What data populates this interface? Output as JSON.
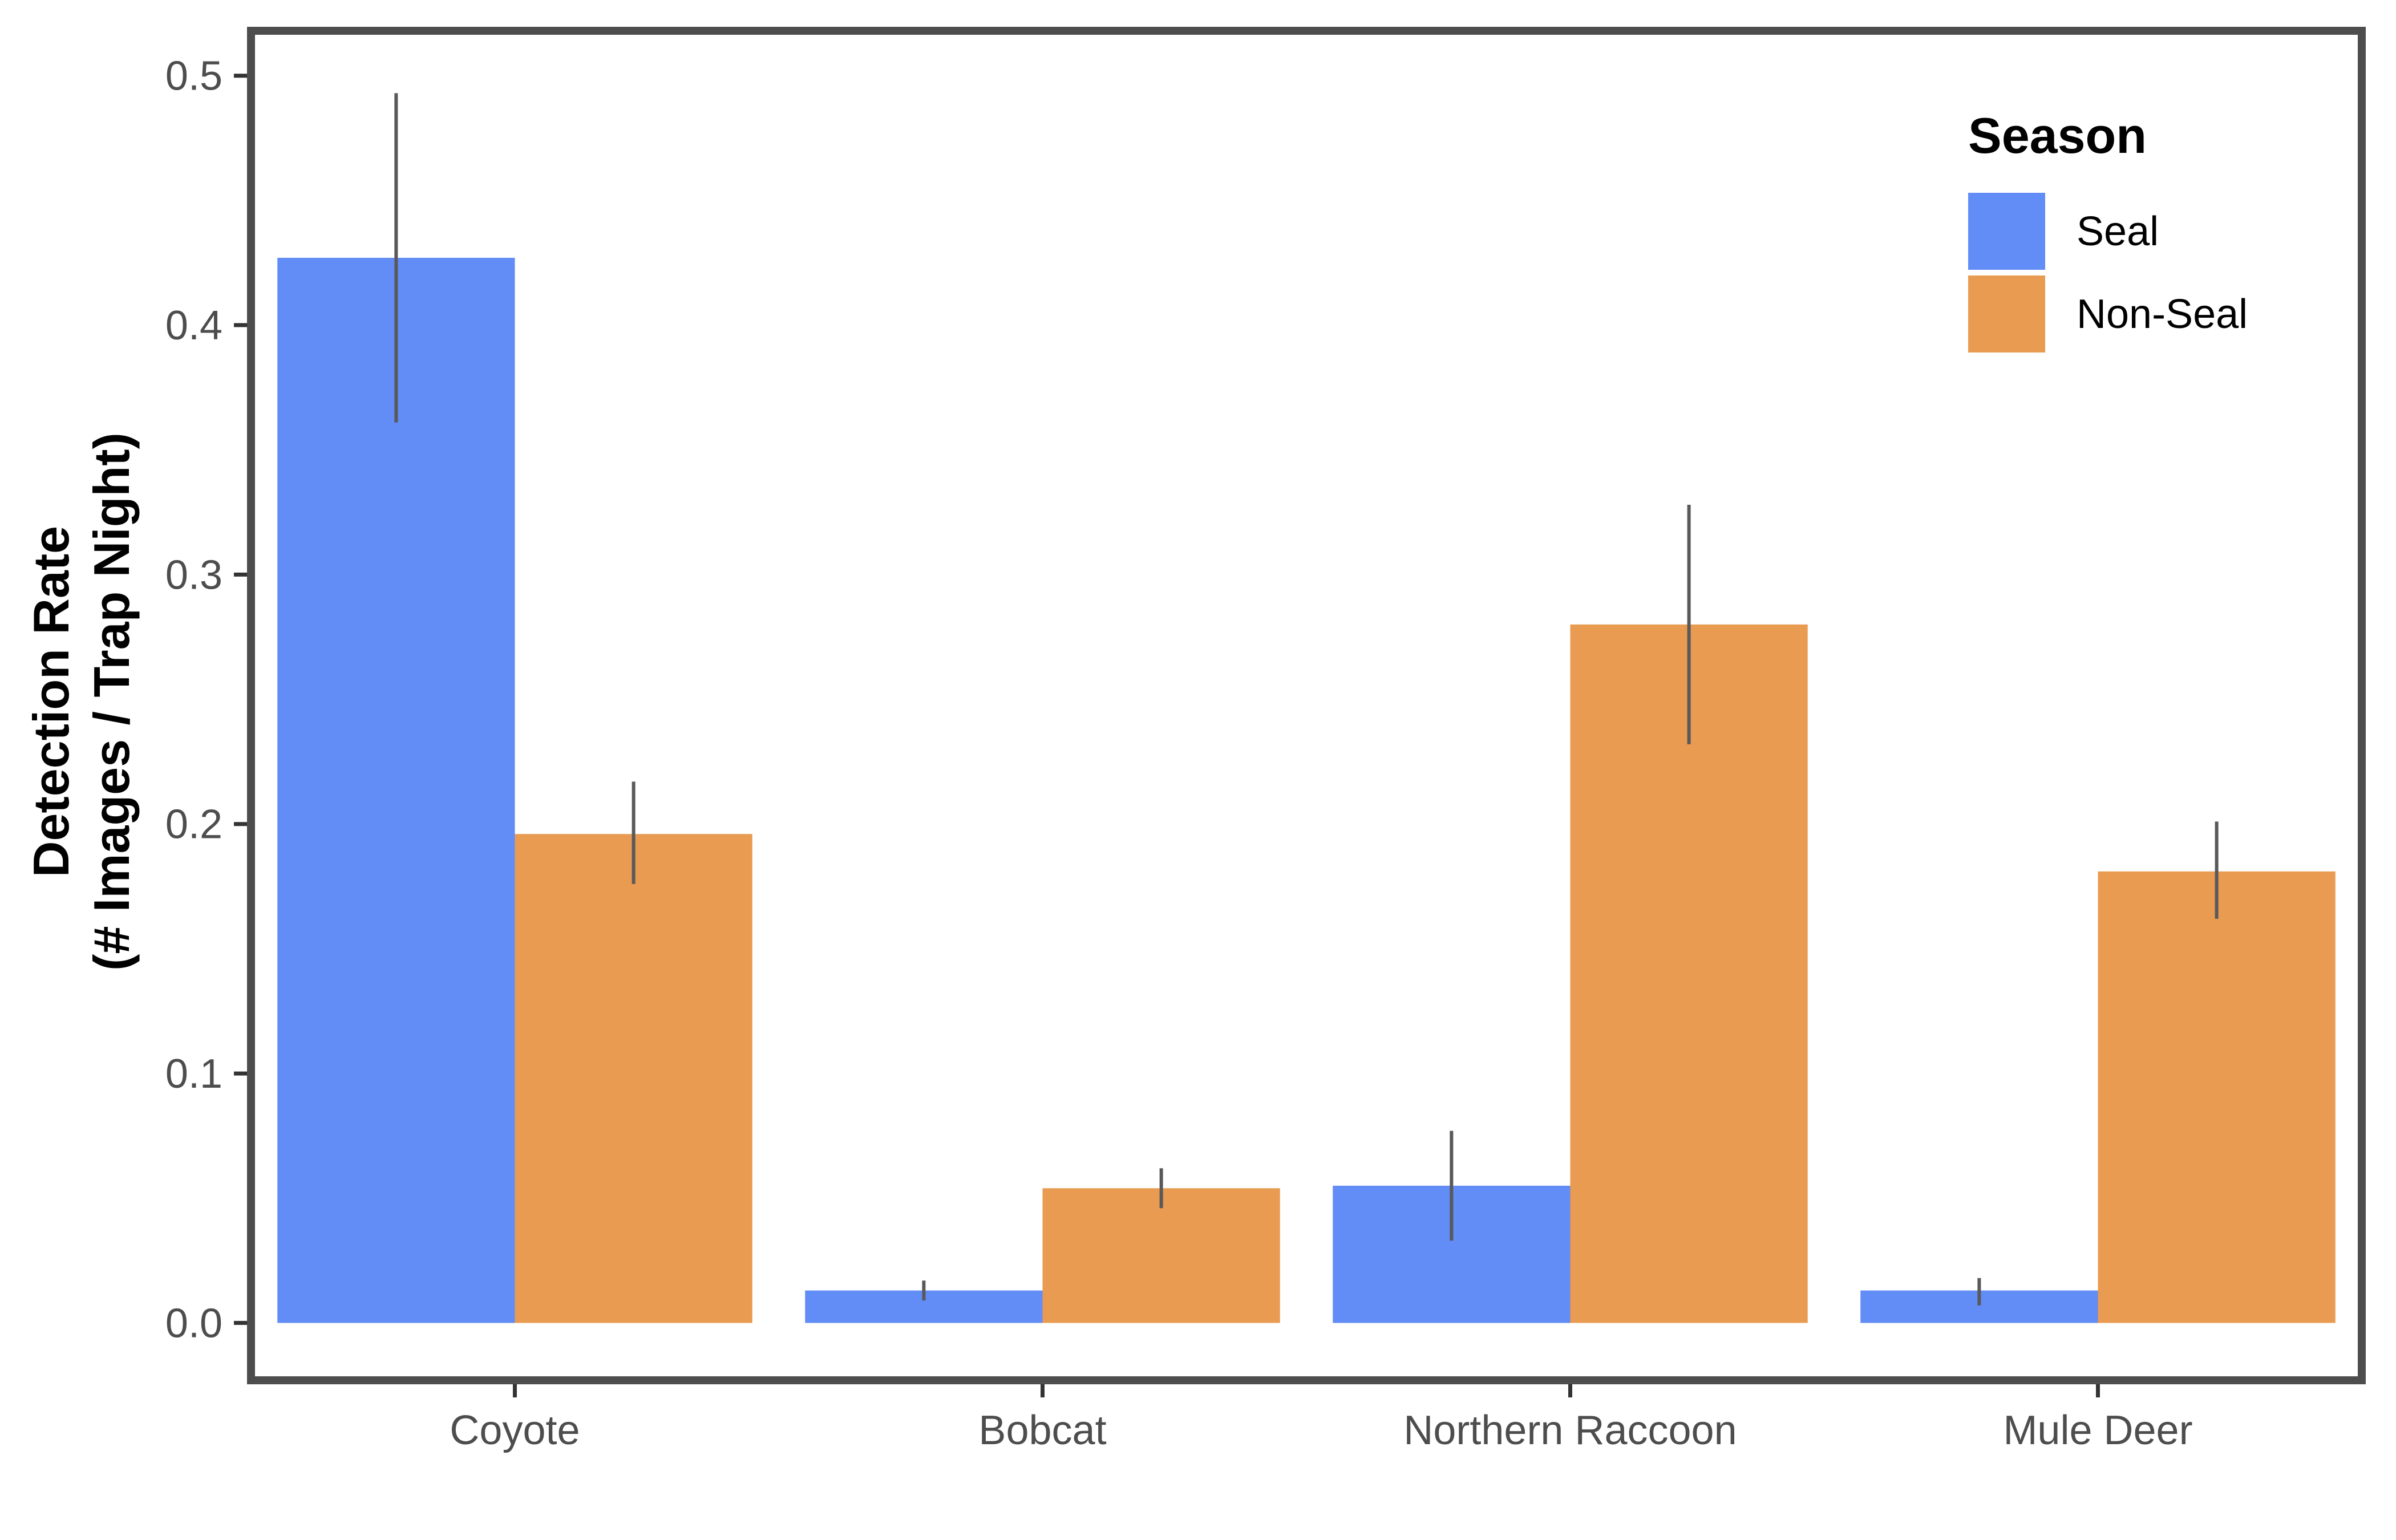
{
  "chart_data": {
    "type": "bar",
    "title": "",
    "xlabel": "",
    "ylabel": [
      "Detection Rate",
      "(# Images / Trap Night)"
    ],
    "categories": [
      "Coyote",
      "Bobcat",
      "Northern Raccoon",
      "Mule Deer"
    ],
    "series": [
      {
        "name": "Seal",
        "color": "#628cf6",
        "values": [
          0.427,
          0.013,
          0.055,
          0.013
        ],
        "error_low": [
          0.361,
          0.009,
          0.033,
          0.007
        ],
        "error_high": [
          0.493,
          0.017,
          0.077,
          0.018
        ]
      },
      {
        "name": "Non-Seal",
        "color": "#e89b51",
        "values": [
          0.196,
          0.054,
          0.28,
          0.181
        ],
        "error_low": [
          0.176,
          0.046,
          0.232,
          0.162
        ],
        "error_high": [
          0.217,
          0.062,
          0.328,
          0.201
        ]
      }
    ],
    "ylim": [
      -0.023,
      0.518
    ],
    "yticks": [
      0.0,
      0.1,
      0.2,
      0.3,
      0.4,
      0.5
    ],
    "ytick_labels": [
      "0.0",
      "0.1",
      "0.2",
      "0.3",
      "0.4",
      "0.5"
    ],
    "legend": {
      "title": "Season",
      "placement": "top-right"
    },
    "grid": false
  }
}
